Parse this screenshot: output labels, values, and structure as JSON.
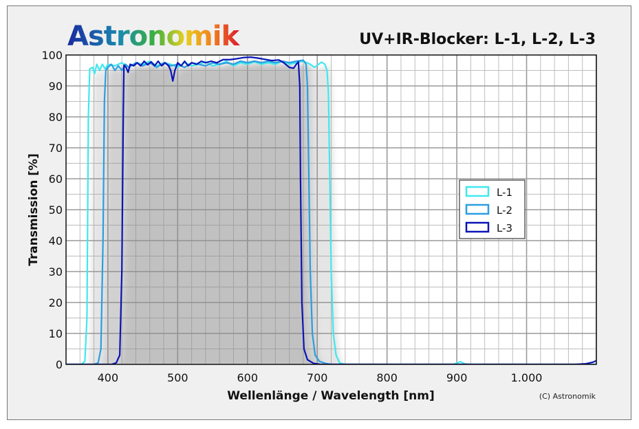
{
  "logo_text": "Astronomik",
  "copyright": "(C) Astronomik",
  "chart_data": {
    "type": "line",
    "title": "UV+IR-Blocker: L-1, L-2, L-3",
    "xlabel": "Wellenlänge / Wavelength [nm]",
    "ylabel": "Transmission [%]",
    "xlim": [
      340,
      1100
    ],
    "ylim": [
      0,
      100
    ],
    "xticks": [
      400,
      500,
      600,
      700,
      800,
      900,
      1000
    ],
    "xtick_labels": [
      "400",
      "500",
      "600",
      "700",
      "800",
      "900",
      "1.000"
    ],
    "yticks": [
      0,
      10,
      20,
      30,
      40,
      50,
      60,
      70,
      80,
      90,
      100
    ],
    "grid": true,
    "legend_position": "right",
    "series": [
      {
        "name": "L-1",
        "color": "#40e8ee",
        "points": [
          [
            340,
            0
          ],
          [
            362,
            0
          ],
          [
            367,
            1
          ],
          [
            370,
            15
          ],
          [
            372,
            80
          ],
          [
            374,
            95.5
          ],
          [
            378,
            96
          ],
          [
            381,
            94
          ],
          [
            384,
            97
          ],
          [
            388,
            95
          ],
          [
            392,
            97
          ],
          [
            396,
            95.5
          ],
          [
            400,
            97
          ],
          [
            410,
            96.5
          ],
          [
            420,
            97.5
          ],
          [
            430,
            96
          ],
          [
            440,
            97.5
          ],
          [
            450,
            97
          ],
          [
            460,
            98
          ],
          [
            470,
            96.5
          ],
          [
            480,
            97.5
          ],
          [
            490,
            97
          ],
          [
            500,
            96
          ],
          [
            510,
            97.5
          ],
          [
            520,
            96.5
          ],
          [
            530,
            97
          ],
          [
            540,
            97.8
          ],
          [
            550,
            96.5
          ],
          [
            560,
            97
          ],
          [
            570,
            98
          ],
          [
            580,
            96.5
          ],
          [
            590,
            97.5
          ],
          [
            600,
            97
          ],
          [
            610,
            97.8
          ],
          [
            620,
            97
          ],
          [
            630,
            97.5
          ],
          [
            640,
            97
          ],
          [
            650,
            98
          ],
          [
            660,
            97
          ],
          [
            670,
            97.5
          ],
          [
            680,
            98
          ],
          [
            690,
            97
          ],
          [
            696,
            96
          ],
          [
            702,
            97
          ],
          [
            706,
            97.7
          ],
          [
            711,
            97
          ],
          [
            714,
            95
          ],
          [
            716,
            88
          ],
          [
            718,
            60
          ],
          [
            720,
            30
          ],
          [
            723,
            10
          ],
          [
            727,
            3
          ],
          [
            732,
            0.5
          ],
          [
            740,
            0
          ],
          [
            895,
            0
          ],
          [
            900,
            0.4
          ],
          [
            905,
            0.9
          ],
          [
            910,
            0.3
          ],
          [
            915,
            0
          ],
          [
            1100,
            0
          ]
        ]
      },
      {
        "name": "L-2",
        "color": "#2a9ee0",
        "points": [
          [
            340,
            0
          ],
          [
            380,
            0
          ],
          [
            386,
            0.5
          ],
          [
            390,
            5
          ],
          [
            393,
            40
          ],
          [
            395,
            85
          ],
          [
            397,
            95
          ],
          [
            400,
            96
          ],
          [
            405,
            97
          ],
          [
            410,
            95
          ],
          [
            415,
            96.5
          ],
          [
            420,
            95
          ],
          [
            425,
            97
          ],
          [
            430,
            96
          ],
          [
            440,
            97.5
          ],
          [
            450,
            96.5
          ],
          [
            460,
            97.5
          ],
          [
            470,
            96
          ],
          [
            480,
            97.5
          ],
          [
            490,
            96.5
          ],
          [
            500,
            97
          ],
          [
            510,
            96
          ],
          [
            520,
            97.5
          ],
          [
            530,
            97
          ],
          [
            540,
            96.5
          ],
          [
            550,
            97.5
          ],
          [
            560,
            97
          ],
          [
            570,
            97.5
          ],
          [
            580,
            97
          ],
          [
            590,
            98
          ],
          [
            600,
            97.5
          ],
          [
            610,
            98
          ],
          [
            620,
            97.5
          ],
          [
            630,
            98
          ],
          [
            640,
            97.5
          ],
          [
            650,
            98
          ],
          [
            660,
            97.5
          ],
          [
            670,
            98
          ],
          [
            680,
            98.3
          ],
          [
            684,
            97
          ],
          [
            686,
            90
          ],
          [
            688,
            60
          ],
          [
            690,
            30
          ],
          [
            693,
            10
          ],
          [
            697,
            3
          ],
          [
            703,
            1
          ],
          [
            712,
            0.3
          ],
          [
            720,
            0
          ],
          [
            1100,
            0
          ]
        ]
      },
      {
        "name": "L-3",
        "color": "#0a14b4",
        "points": [
          [
            340,
            0
          ],
          [
            405,
            0
          ],
          [
            412,
            0.5
          ],
          [
            417,
            3
          ],
          [
            420,
            30
          ],
          [
            422,
            80
          ],
          [
            423,
            96.7
          ],
          [
            426,
            96
          ],
          [
            429,
            94.4
          ],
          [
            432,
            97
          ],
          [
            437,
            96.5
          ],
          [
            442,
            97.5
          ],
          [
            447,
            96.5
          ],
          [
            452,
            98
          ],
          [
            457,
            96.8
          ],
          [
            462,
            97.8
          ],
          [
            467,
            96.5
          ],
          [
            472,
            98
          ],
          [
            477,
            96.5
          ],
          [
            482,
            97.5
          ],
          [
            487,
            96.5
          ],
          [
            490,
            95
          ],
          [
            493,
            91.6
          ],
          [
            496,
            95
          ],
          [
            500,
            97.5
          ],
          [
            505,
            96.5
          ],
          [
            510,
            98
          ],
          [
            515,
            96.5
          ],
          [
            520,
            97.5
          ],
          [
            527,
            97
          ],
          [
            534,
            98
          ],
          [
            540,
            97.5
          ],
          [
            548,
            98
          ],
          [
            556,
            97.5
          ],
          [
            565,
            98.5
          ],
          [
            575,
            98.5
          ],
          [
            585,
            98.8
          ],
          [
            595,
            99.2
          ],
          [
            605,
            99.3
          ],
          [
            615,
            99
          ],
          [
            625,
            98.6
          ],
          [
            635,
            98.2
          ],
          [
            645,
            98.4
          ],
          [
            652,
            97.5
          ],
          [
            660,
            96
          ],
          [
            666,
            95.7
          ],
          [
            670,
            97
          ],
          [
            673,
            97.8
          ],
          [
            675,
            90
          ],
          [
            676,
            60
          ],
          [
            678,
            20
          ],
          [
            681,
            5
          ],
          [
            686,
            1.5
          ],
          [
            695,
            0.3
          ],
          [
            705,
            0
          ],
          [
            1070,
            0
          ],
          [
            1085,
            0.2
          ],
          [
            1095,
            0.7
          ],
          [
            1100,
            1.2
          ]
        ]
      }
    ]
  }
}
